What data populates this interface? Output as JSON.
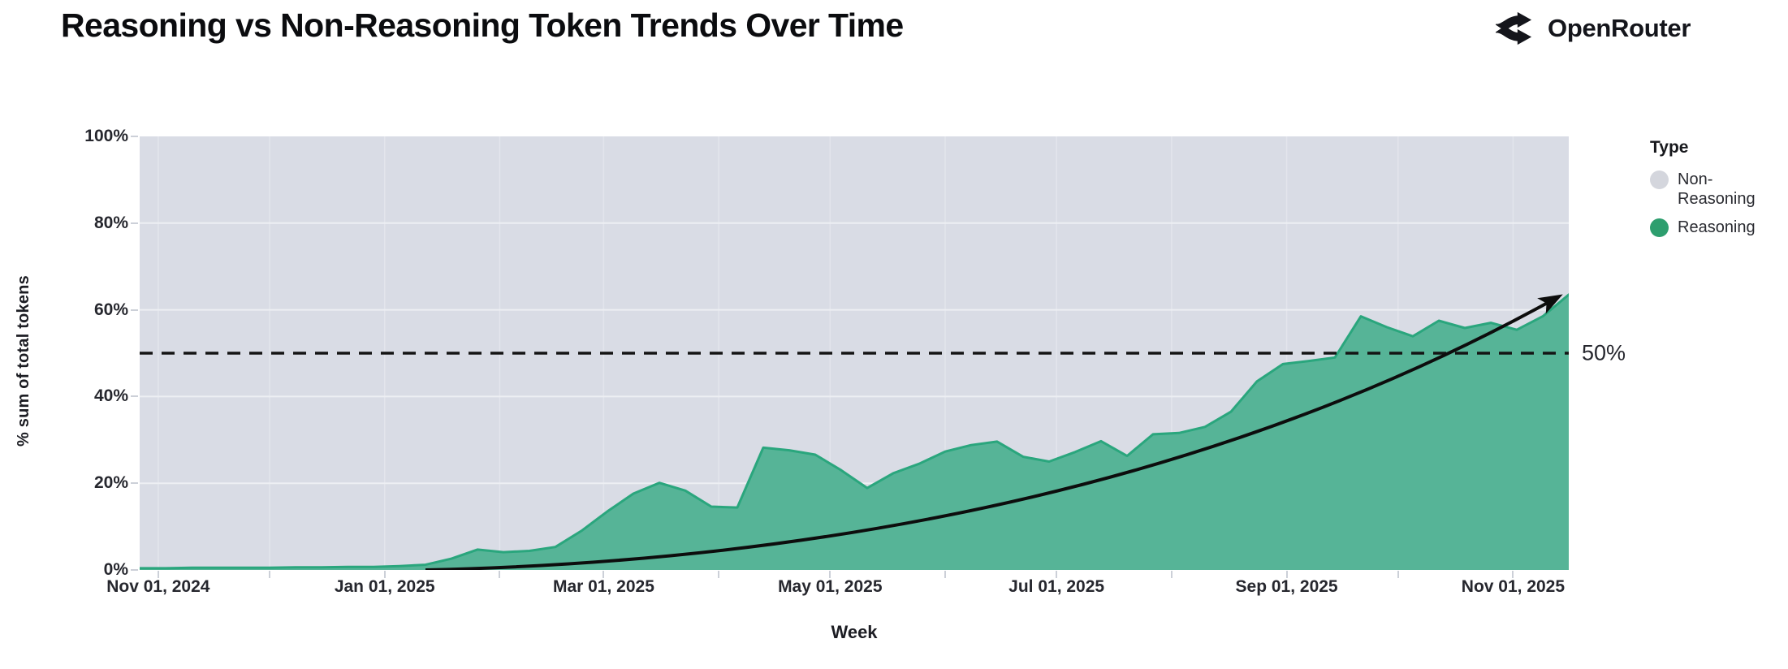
{
  "header": {
    "title": "Reasoning vs Non-Reasoning Token Trends Over Time",
    "brand": {
      "name": "OpenRouter"
    }
  },
  "legend": {
    "title": "Type",
    "items": [
      {
        "label": "Non-Reasoning",
        "color": "#d4d6dd"
      },
      {
        "label": "Reasoning",
        "color": "#2d9e6e"
      }
    ]
  },
  "chart_data": {
    "type": "area",
    "stacking": "percent",
    "xlabel": "Week",
    "ylabel": "% sum of total tokens",
    "ylim": [
      0,
      100
    ],
    "grid": true,
    "legend_position": "right",
    "y_ticks": [
      {
        "value": 0,
        "label": "0%"
      },
      {
        "value": 20,
        "label": "20%"
      },
      {
        "value": 40,
        "label": "40%"
      },
      {
        "value": 60,
        "label": "60%"
      },
      {
        "value": 80,
        "label": "80%"
      },
      {
        "value": 100,
        "label": "100%"
      }
    ],
    "x_ticks": [
      {
        "date": "2024-11-01",
        "label": "Nov 01, 2024"
      },
      {
        "date": "2025-01-01",
        "label": "Jan 01, 2025"
      },
      {
        "date": "2025-03-01",
        "label": "Mar 01, 2025"
      },
      {
        "date": "2025-05-01",
        "label": "May 01, 2025"
      },
      {
        "date": "2025-07-01",
        "label": "Jul 01, 2025"
      },
      {
        "date": "2025-09-01",
        "label": "Sep 01, 2025"
      },
      {
        "date": "2025-11-01",
        "label": "Nov 01, 2025"
      }
    ],
    "month_gridlines": [
      "2024-11-01",
      "2024-12-01",
      "2025-01-01",
      "2025-02-01",
      "2025-03-01",
      "2025-04-01",
      "2025-05-01",
      "2025-06-01",
      "2025-07-01",
      "2025-08-01",
      "2025-09-01",
      "2025-10-01",
      "2025-11-01"
    ],
    "weeks": [
      "2024-10-27",
      "2024-11-03",
      "2024-11-10",
      "2024-11-17",
      "2024-11-24",
      "2024-12-01",
      "2024-12-08",
      "2024-12-15",
      "2024-12-22",
      "2024-12-29",
      "2025-01-05",
      "2025-01-12",
      "2025-01-19",
      "2025-01-26",
      "2025-02-02",
      "2025-02-09",
      "2025-02-16",
      "2025-02-23",
      "2025-03-02",
      "2025-03-09",
      "2025-03-16",
      "2025-03-23",
      "2025-03-30",
      "2025-04-06",
      "2025-04-13",
      "2025-04-20",
      "2025-04-27",
      "2025-05-04",
      "2025-05-11",
      "2025-05-18",
      "2025-05-25",
      "2025-06-01",
      "2025-06-08",
      "2025-06-15",
      "2025-06-22",
      "2025-06-29",
      "2025-07-06",
      "2025-07-13",
      "2025-07-20",
      "2025-07-27",
      "2025-08-03",
      "2025-08-10",
      "2025-08-17",
      "2025-08-24",
      "2025-08-31",
      "2025-09-07",
      "2025-09-14",
      "2025-09-21",
      "2025-09-28",
      "2025-10-05",
      "2025-10-12",
      "2025-10-19",
      "2025-10-26",
      "2025-11-02",
      "2025-11-09",
      "2025-11-16"
    ],
    "series": [
      {
        "name": "Reasoning",
        "legend_color": "#2d9e6e",
        "fill": "#56b497",
        "stroke": "#2aa67d",
        "values": [
          0.4,
          0.4,
          0.5,
          0.5,
          0.5,
          0.5,
          0.6,
          0.6,
          0.7,
          0.7,
          0.9,
          1.2,
          2.6,
          4.7,
          4.1,
          4.4,
          5.3,
          9.0,
          13.5,
          17.6,
          20.1,
          18.3,
          14.6,
          14.4,
          28.2,
          27.6,
          26.6,
          23.0,
          18.9,
          22.3,
          24.5,
          27.3,
          28.8,
          29.6,
          26.1,
          25.0,
          27.2,
          29.7,
          26.3,
          31.3,
          31.6,
          33.0,
          36.5,
          43.5,
          47.5,
          48.2,
          49.0,
          58.5,
          56.0,
          53.9,
          57.5,
          55.8,
          57.0,
          55.4,
          58.5,
          63.5
        ]
      },
      {
        "name": "Non-Reasoning",
        "legend_color": "#d4d6dd",
        "fill": "#d9dce5",
        "role": "complement-to-100%"
      }
    ],
    "annotations": {
      "reference_line": {
        "value": 50,
        "label": "50%",
        "style": "dashed",
        "color": "#141414"
      },
      "trend_arrow": {
        "start_date": "2025-01-12",
        "start_value": 0,
        "end_date": "2025-11-10",
        "end_value": 61.5,
        "color": "#0d0d0d"
      }
    },
    "colors": {
      "plot_background": "#d9dce5",
      "h_gridline": "#edeff3",
      "v_gridline": "#e3e5ec",
      "tick_stub": "#ccd0d8"
    }
  }
}
